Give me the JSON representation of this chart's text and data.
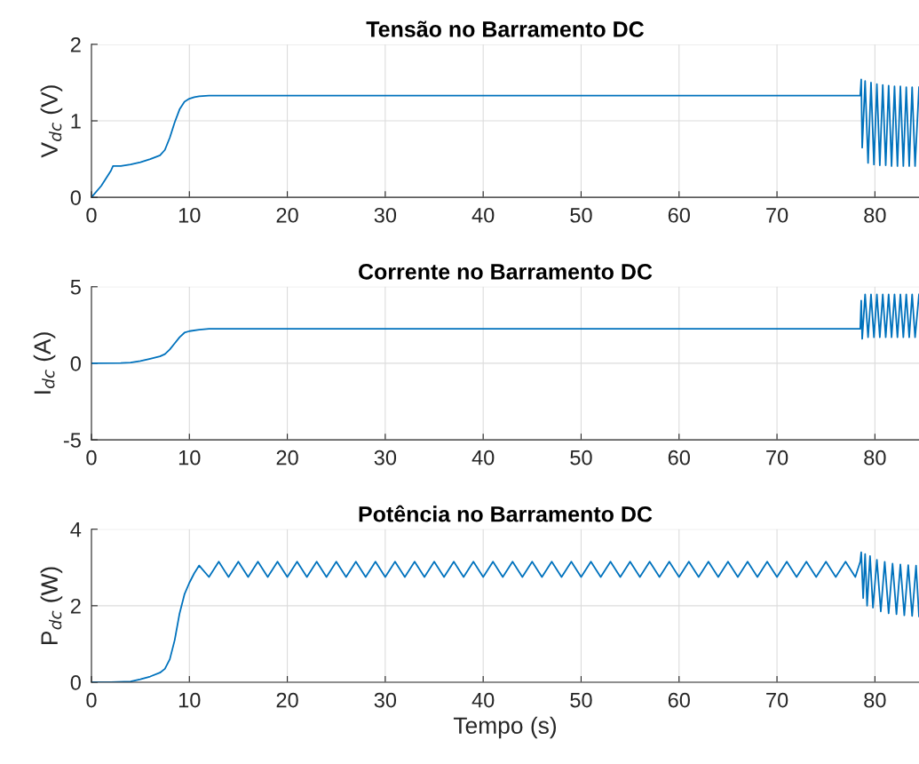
{
  "chart_data": [
    {
      "type": "line",
      "title": "Tensão no Barramento DC",
      "ylabel": "V$_{dc}$ (V)",
      "xlim": [
        0,
        84.5
      ],
      "xticks": [
        0,
        10,
        20,
        30,
        40,
        50,
        60,
        70,
        80
      ],
      "ylim": [
        0,
        2
      ],
      "yticks": [
        0,
        1,
        2
      ],
      "grid": true,
      "series": [
        {
          "color": "#0072bd",
          "x": [
            0,
            1,
            2,
            2.2,
            3,
            4,
            5,
            6,
            7,
            7.5,
            8,
            8.5,
            9,
            9.5,
            10,
            10.5,
            11,
            12,
            20,
            40,
            60,
            78.5,
            78.6,
            78.7,
            79.0,
            79.3,
            79.6,
            79.9,
            80.2,
            80.5,
            80.8,
            81.1,
            81.4,
            81.7,
            82.0,
            82.3,
            82.6,
            82.9,
            83.2,
            83.5,
            83.8,
            84.1,
            84.5
          ],
          "values": [
            0,
            0.15,
            0.35,
            0.41,
            0.41,
            0.43,
            0.46,
            0.5,
            0.55,
            0.62,
            0.78,
            0.98,
            1.15,
            1.25,
            1.29,
            1.31,
            1.32,
            1.33,
            1.33,
            1.33,
            1.33,
            1.33,
            1.54,
            0.65,
            1.52,
            0.45,
            1.5,
            0.43,
            1.48,
            0.42,
            1.47,
            0.42,
            1.46,
            0.41,
            1.45,
            0.41,
            1.45,
            0.41,
            1.44,
            0.41,
            1.44,
            0.41,
            1.44
          ]
        }
      ]
    },
    {
      "type": "line",
      "title": "Corrente no Barramento DC",
      "ylabel": "I$_{dc}$ (A)",
      "xlim": [
        0,
        84.5
      ],
      "xticks": [
        0,
        10,
        20,
        30,
        40,
        50,
        60,
        70,
        80
      ],
      "ylim": [
        -5,
        5
      ],
      "yticks": [
        -5,
        0,
        5
      ],
      "grid": true,
      "series": [
        {
          "color": "#0072bd",
          "x": [
            0,
            3,
            4,
            5,
            6,
            7,
            7.5,
            8,
            8.5,
            9,
            9.5,
            10,
            11,
            12,
            20,
            40,
            60,
            78.5,
            78.6,
            78.7,
            79.0,
            79.3,
            79.6,
            79.9,
            80.2,
            80.5,
            80.8,
            81.1,
            81.4,
            81.7,
            82.0,
            82.3,
            82.6,
            82.9,
            83.2,
            83.5,
            83.8,
            84.1,
            84.5
          ],
          "values": [
            0,
            0.02,
            0.05,
            0.15,
            0.3,
            0.45,
            0.6,
            0.9,
            1.3,
            1.7,
            2.0,
            2.1,
            2.2,
            2.25,
            2.25,
            2.25,
            2.25,
            2.25,
            4.1,
            1.6,
            4.5,
            1.7,
            4.5,
            1.7,
            4.5,
            1.7,
            4.5,
            1.7,
            4.5,
            1.7,
            4.5,
            1.7,
            4.5,
            1.7,
            4.5,
            1.7,
            4.5,
            1.7,
            4.5
          ]
        }
      ]
    },
    {
      "type": "line",
      "title": "Potência no Barramento DC",
      "xlabel": "Tempo (s)",
      "ylabel": "P$_{dc}$ (W)",
      "xlim": [
        0,
        84.5
      ],
      "xticks": [
        0,
        10,
        20,
        30,
        40,
        50,
        60,
        70,
        80
      ],
      "ylim": [
        0,
        4
      ],
      "yticks": [
        0,
        2,
        4
      ],
      "grid": true,
      "series": [
        {
          "color": "#0072bd",
          "x": [
            0,
            2,
            4,
            5,
            6,
            7,
            7.5,
            8,
            8.5,
            9,
            9.5,
            10,
            10.5,
            11,
            12,
            13,
            14,
            15,
            16,
            17,
            18,
            19,
            20,
            21,
            22,
            23,
            24,
            25,
            26,
            27,
            28,
            29,
            30,
            31,
            32,
            33,
            34,
            35,
            36,
            37,
            38,
            39,
            40,
            41,
            42,
            43,
            44,
            45,
            46,
            47,
            48,
            49,
            50,
            51,
            52,
            53,
            54,
            55,
            56,
            57,
            58,
            59,
            60,
            61,
            62,
            63,
            64,
            65,
            66,
            67,
            68,
            69,
            70,
            71,
            72,
            73,
            74,
            75,
            76,
            77,
            78,
            78.5,
            78.6,
            78.8,
            79.0,
            79.2,
            79.5,
            79.8,
            80.2,
            80.6,
            81.0,
            81.4,
            81.8,
            82.2,
            82.6,
            83.0,
            83.4,
            83.8,
            84.2,
            84.5
          ],
          "values": [
            0,
            0,
            0.02,
            0.08,
            0.15,
            0.25,
            0.35,
            0.6,
            1.1,
            1.8,
            2.3,
            2.6,
            2.85,
            3.05,
            2.75,
            3.15,
            2.75,
            3.15,
            2.75,
            3.15,
            2.75,
            3.15,
            2.75,
            3.15,
            2.75,
            3.15,
            2.75,
            3.15,
            2.75,
            3.15,
            2.75,
            3.15,
            2.75,
            3.15,
            2.75,
            3.15,
            2.75,
            3.15,
            2.75,
            3.15,
            2.75,
            3.15,
            2.75,
            3.15,
            2.75,
            3.15,
            2.75,
            3.15,
            2.75,
            3.15,
            2.75,
            3.15,
            2.75,
            3.15,
            2.75,
            3.15,
            2.75,
            3.15,
            2.75,
            3.15,
            2.75,
            3.15,
            2.75,
            3.15,
            2.75,
            3.15,
            2.75,
            3.15,
            2.75,
            3.15,
            2.75,
            3.15,
            2.75,
            3.15,
            2.75,
            3.15,
            2.75,
            3.15,
            2.75,
            3.15,
            2.75,
            3.15,
            3.4,
            2.2,
            3.35,
            2.0,
            3.3,
            1.95,
            3.2,
            1.85,
            3.15,
            1.8,
            3.1,
            1.78,
            3.08,
            1.75,
            3.06,
            1.73,
            3.05,
            1.72
          ]
        }
      ]
    }
  ]
}
